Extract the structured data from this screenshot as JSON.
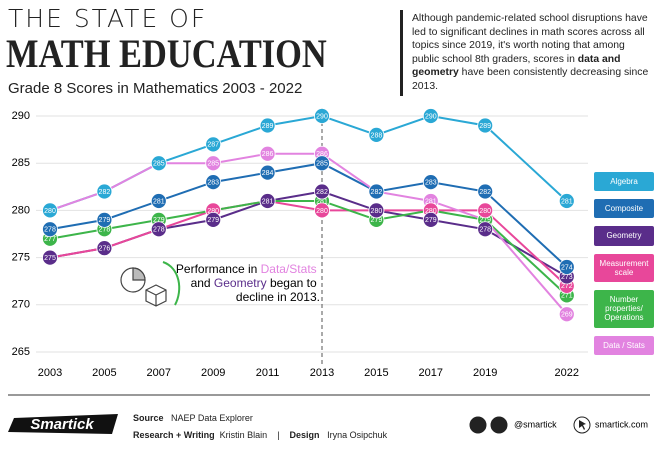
{
  "header": {
    "supertitle": "THE STATE OF",
    "title": "MATH EDUCATION",
    "subtitle": "Grade 8 Scores in Mathematics 2003 - 2022",
    "intro": [
      "Although pandemic-related school disruptions have led to significant declines in math scores across all topics since 2019, it's worth noting that among public school 8th graders, scores in ",
      "data and geometry",
      " have been consistently decreasing since 2013."
    ]
  },
  "chart_data": {
    "type": "line",
    "x": [
      2003,
      2005,
      2007,
      2009,
      2011,
      2013,
      2015,
      2017,
      2019,
      2022
    ],
    "xlim": [
      2002,
      2023
    ],
    "ylim": [
      264,
      291
    ],
    "yticks": [
      265,
      270,
      275,
      280,
      285,
      290
    ],
    "grid": true,
    "highlight_x": 2013,
    "annotation": [
      "Performance in ",
      "Data/Stats",
      "and ",
      "Geometry",
      " began to",
      "decline in 2013."
    ],
    "series": [
      {
        "name": "Algebra",
        "color": "#2aa8d5",
        "values": [
          280,
          282,
          285,
          287,
          289,
          290,
          288,
          290,
          289,
          281
        ]
      },
      {
        "name": "Composite",
        "color": "#1f6db3",
        "values": [
          278,
          279,
          281,
          283,
          284,
          285,
          282,
          283,
          282,
          274
        ]
      },
      {
        "name": "Geometry",
        "color": "#5a2d8a",
        "values": [
          275,
          276,
          278,
          279,
          281,
          282,
          280,
          279,
          278,
          273
        ]
      },
      {
        "name": "Measurement scale",
        "color": "#e8479a",
        "values": [
          275,
          276,
          278,
          280,
          281,
          280,
          280,
          280,
          280,
          272
        ]
      },
      {
        "name": "Number properties/ Operations",
        "color": "#3db54a",
        "values": [
          277,
          278,
          279,
          280,
          281,
          281,
          279,
          280,
          279,
          271
        ]
      },
      {
        "name": "Data / Stats",
        "color": "#e283e0",
        "values": [
          280,
          282,
          285,
          285,
          286,
          286,
          282,
          281,
          279,
          269
        ]
      }
    ]
  },
  "footer": {
    "source_label": "Source",
    "source": "NAEP Data Explorer",
    "research_label": "Research + Writing",
    "research": "Kristin Blain",
    "separator": "|",
    "design_label": "Design",
    "design": "Iryna Osipchuk",
    "handle": "@smartick",
    "website": "smartick.com",
    "logo": "Smartick"
  }
}
